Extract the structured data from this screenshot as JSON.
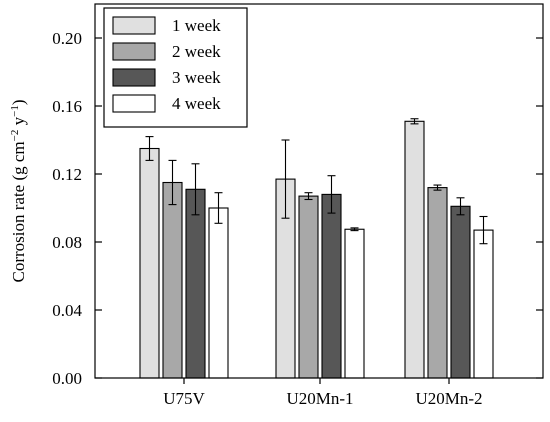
{
  "chart_data": {
    "type": "bar",
    "title": "",
    "xlabel": "",
    "ylabel": "Corrosion rate (g cm",
    "ylabel_sup1": "−2",
    "ylabel_mid": " y",
    "ylabel_sup2": "−1",
    "ylabel_end": ")",
    "ylim": [
      0,
      0.22
    ],
    "yticks": [
      "0.00",
      "0.04",
      "0.08",
      "0.12",
      "0.16",
      "0.20"
    ],
    "ytick_values": [
      0,
      0.04,
      0.08,
      0.12,
      0.16,
      0.2
    ],
    "categories": [
      "U75V",
      "U20Mn-1",
      "U20Mn-2"
    ],
    "legend_position": "top-left",
    "grid": false,
    "series": [
      {
        "name": "1 week",
        "color": "#e0e0e0",
        "values": [
          0.135,
          0.117,
          0.151
        ],
        "errors": [
          0.007,
          0.023,
          0.0015
        ]
      },
      {
        "name": "2 week",
        "color": "#a8a8a8",
        "values": [
          0.115,
          0.107,
          0.112
        ],
        "errors": [
          0.013,
          0.002,
          0.0015
        ]
      },
      {
        "name": "3 week",
        "color": "#575757",
        "values": [
          0.111,
          0.108,
          0.101
        ],
        "errors": [
          0.015,
          0.011,
          0.005
        ]
      },
      {
        "name": "4 week",
        "color": "#ffffff",
        "values": [
          0.1,
          0.0875,
          0.087
        ],
        "errors": [
          0.009,
          0.0008,
          0.008
        ]
      }
    ]
  }
}
